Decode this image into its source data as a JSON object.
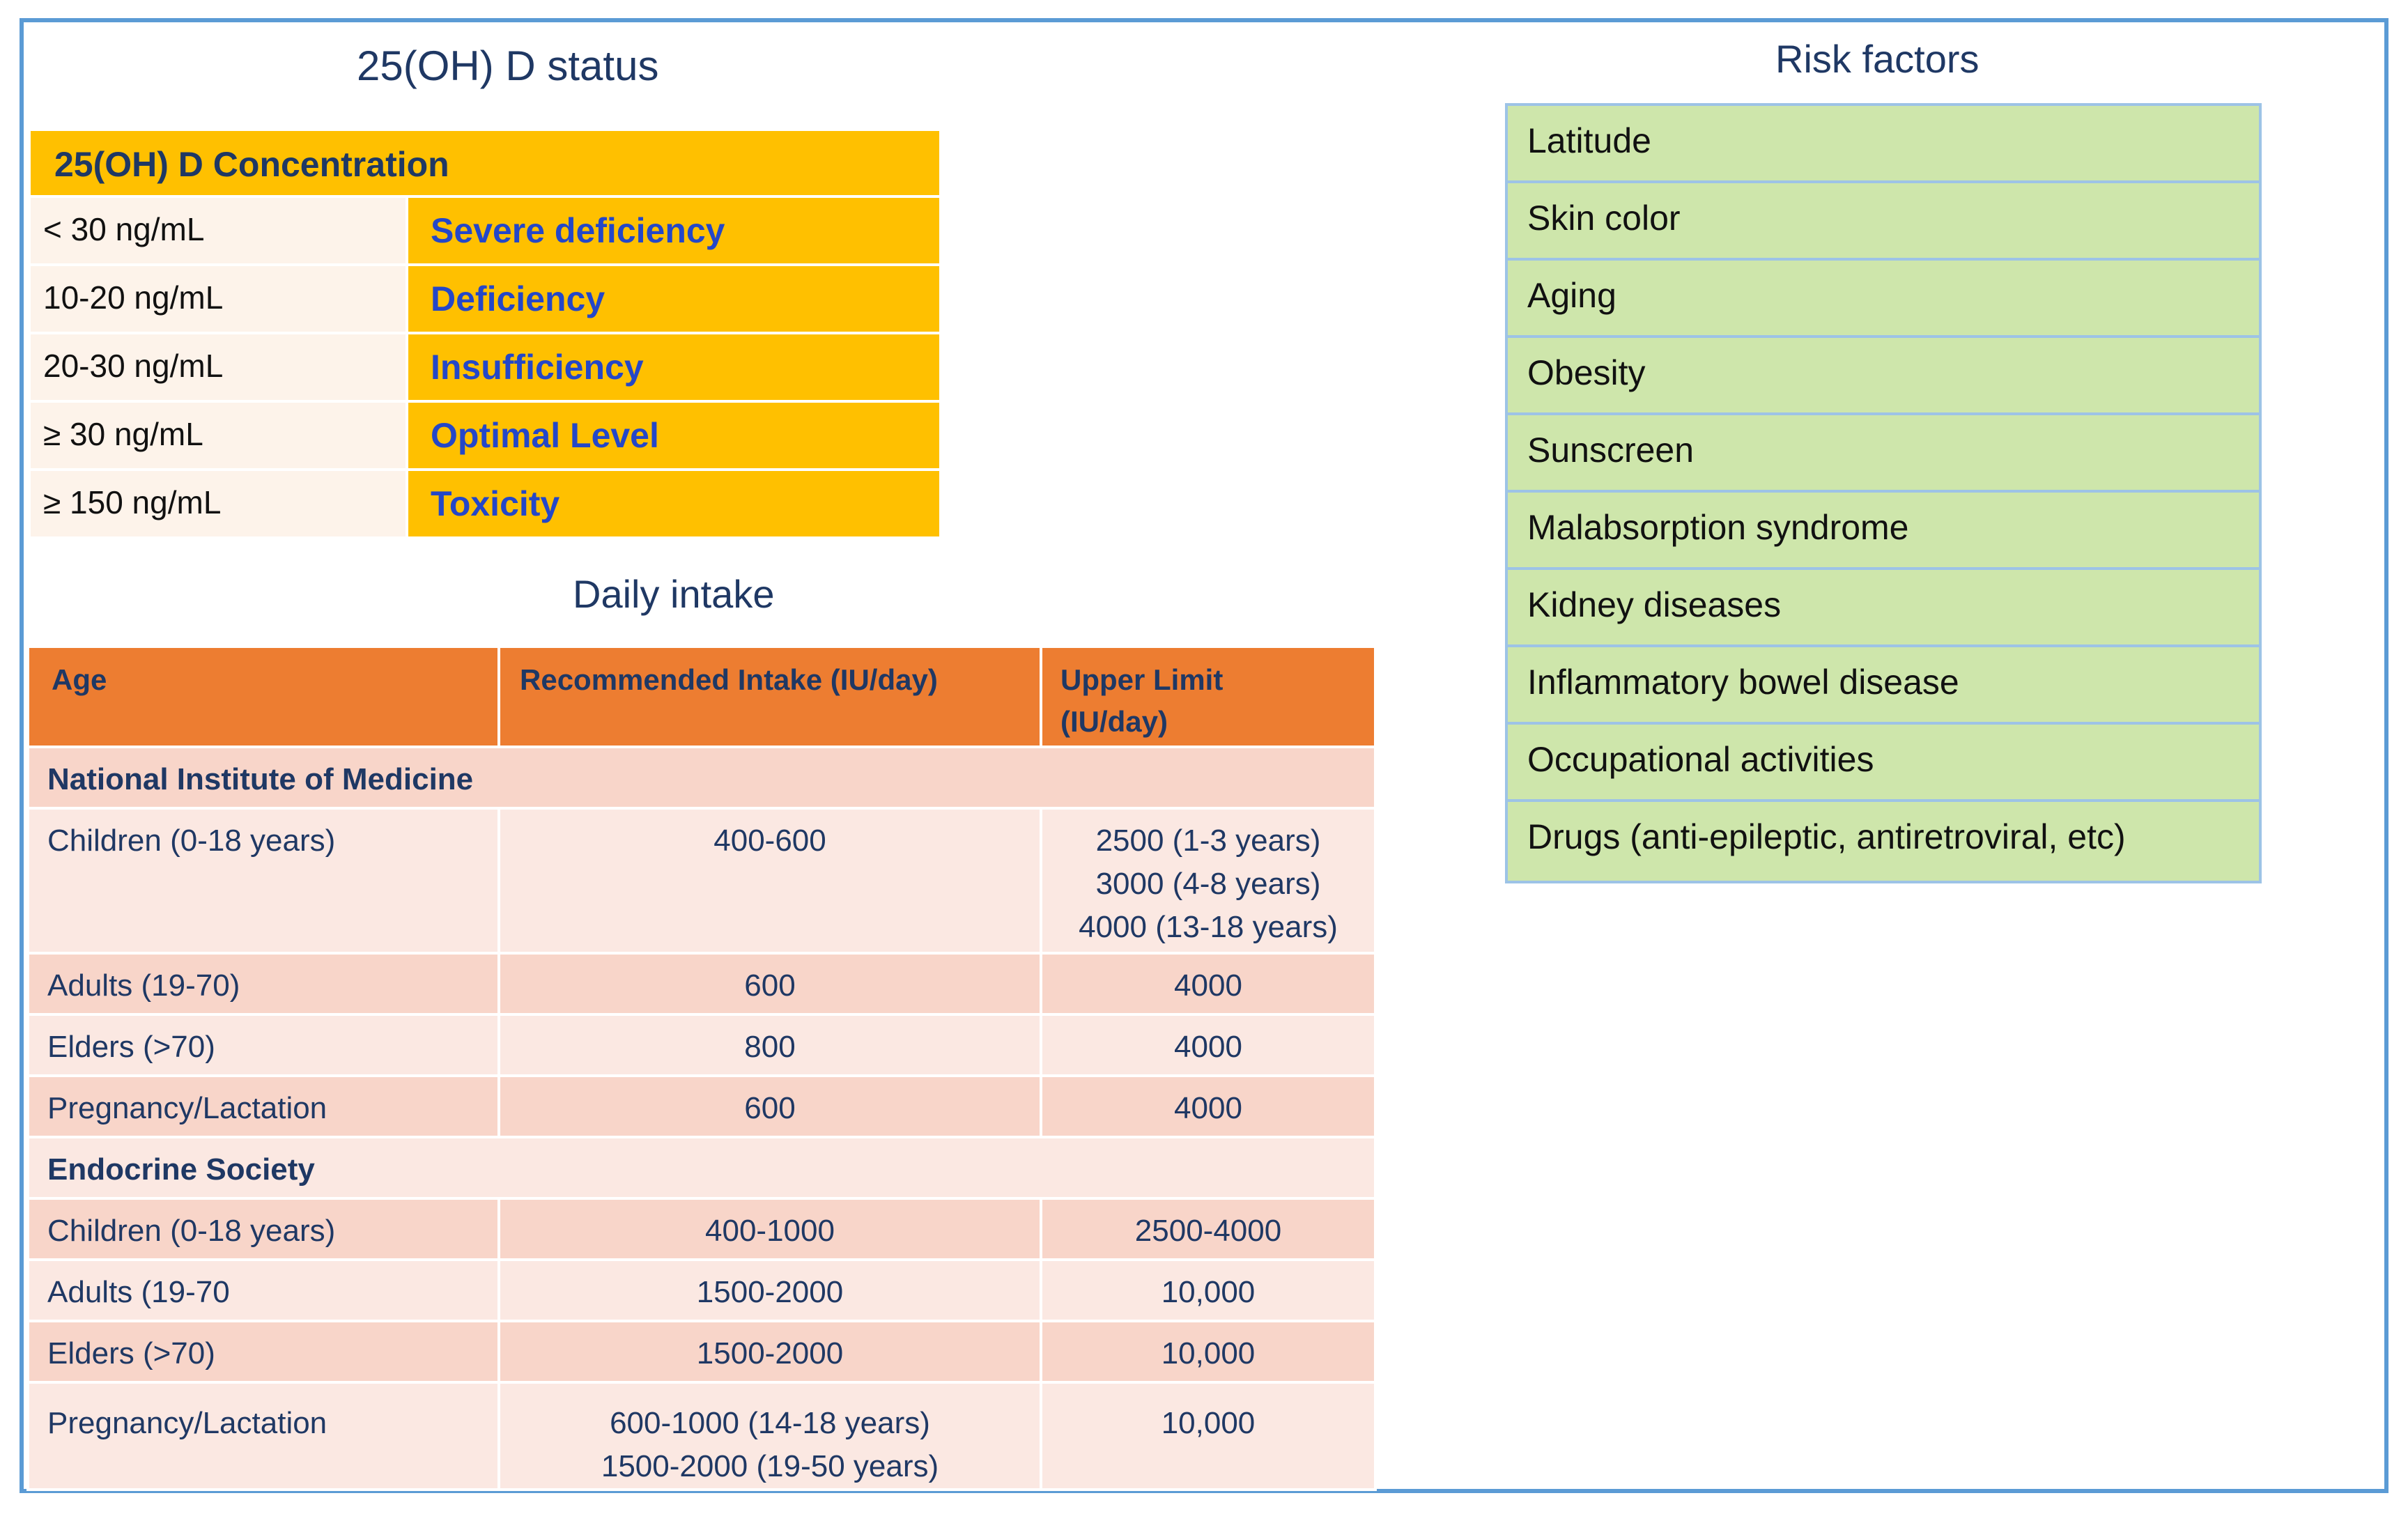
{
  "status": {
    "title": "25(OH) D status",
    "header": "25(OH) D  Concentration",
    "rows": [
      {
        "range": "< 30 ng/mL",
        "label": "Severe deficiency"
      },
      {
        "range": "10-20 ng/mL",
        "label": "Deficiency"
      },
      {
        "range": "20-30 ng/mL",
        "label": "Insufficiency"
      },
      {
        "range": "≥ 30 ng/mL",
        "label": "Optimal Level"
      },
      {
        "range": "≥ 150 ng/mL",
        "label": "Toxicity"
      }
    ]
  },
  "daily": {
    "title": "Daily intake",
    "headers": {
      "age": "Age",
      "recommended": "Recommended Intake (IU/day)",
      "upper_1": "Upper Limit",
      "upper_2": "(IU/day)"
    },
    "section1": "National Institute of Medicine",
    "nim": [
      {
        "age": "Children (0-18 years)",
        "rec": "400-600",
        "up1": "2500 (1-3 years)",
        "up2": "3000 (4-8 years)",
        "up3": "4000 (13-18 years)"
      },
      {
        "age": "Adults (19-70)",
        "rec": "600",
        "up": "4000"
      },
      {
        "age": "Elders (>70)",
        "rec": "800",
        "up": "4000"
      },
      {
        "age": "Pregnancy/Lactation",
        "rec": "600",
        "up": "4000"
      }
    ],
    "section2": "Endocrine Society",
    "es": [
      {
        "age": "Children (0-18 years)",
        "rec": "400-1000",
        "up": "2500-4000"
      },
      {
        "age": "Adults (19-70",
        "rec": "1500-2000",
        "up": "10,000"
      },
      {
        "age": "Elders (>70)",
        "rec": "1500-2000",
        "up": "10,000"
      },
      {
        "age": "Pregnancy/Lactation",
        "rec1": "600-1000 (14-18 years)",
        "rec2": "1500-2000 (19-50 years)",
        "up": "10,000"
      }
    ]
  },
  "risk": {
    "title": "Risk factors",
    "items": [
      "Latitude",
      "Skin color",
      "Aging",
      "Obesity",
      "Sunscreen",
      "Malabsorption syndrome",
      "Kidney diseases",
      "Inflammatory bowel disease",
      "Occupational activities",
      "Drugs (anti-epileptic, antiretroviral, etc)"
    ]
  }
}
